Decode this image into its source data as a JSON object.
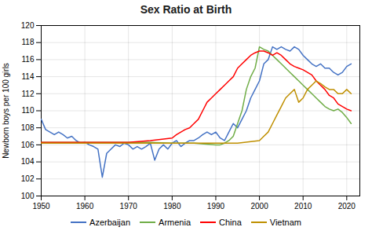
{
  "chart_data": {
    "type": "line",
    "title": "Sex Ratio at Birth",
    "ylabel": "Newborn boys per 100 girls",
    "xlim": [
      1950,
      2023
    ],
    "ylim": [
      100,
      120
    ],
    "xticks": [
      1950,
      1960,
      1970,
      1980,
      1990,
      2000,
      2010,
      2020
    ],
    "yticks": [
      100,
      102,
      104,
      106,
      108,
      110,
      112,
      114,
      116,
      118,
      120
    ],
    "grid": true,
    "legend": "bottom",
    "series": [
      {
        "name": "Azerbaijan",
        "color": "#4472c4",
        "x": [
          1950,
          1951,
          1952,
          1953,
          1954,
          1955,
          1956,
          1957,
          1958,
          1959,
          1960,
          1961,
          1962,
          1963,
          1964,
          1965,
          1966,
          1967,
          1968,
          1969,
          1970,
          1971,
          1972,
          1973,
          1974,
          1975,
          1976,
          1977,
          1978,
          1979,
          1980,
          1981,
          1982,
          1983,
          1984,
          1985,
          1986,
          1987,
          1988,
          1989,
          1990,
          1991,
          1992,
          1993,
          1994,
          1995,
          1996,
          1997,
          1998,
          1999,
          2000,
          2001,
          2002,
          2003,
          2004,
          2005,
          2006,
          2007,
          2008,
          2009,
          2010,
          2011,
          2012,
          2013,
          2014,
          2015,
          2016,
          2017,
          2018,
          2019,
          2020,
          2021
        ],
        "values": [
          109.0,
          107.8,
          107.5,
          107.2,
          107.5,
          107.2,
          106.8,
          107.0,
          106.5,
          106.2,
          106.3,
          106.0,
          105.8,
          105.5,
          102.2,
          105.0,
          105.5,
          106.0,
          105.8,
          106.2,
          106.0,
          105.5,
          105.8,
          105.5,
          105.8,
          106.2,
          104.2,
          105.5,
          106.0,
          105.5,
          106.2,
          106.5,
          105.8,
          106.2,
          106.5,
          106.5,
          106.8,
          107.2,
          107.5,
          107.2,
          107.5,
          106.8,
          106.5,
          107.5,
          108.5,
          108.0,
          109.0,
          110.0,
          111.5,
          112.5,
          113.5,
          115.5,
          116.0,
          117.5,
          117.2,
          117.5,
          117.2,
          117.0,
          117.5,
          117.2,
          116.5,
          116.0,
          115.5,
          115.2,
          115.5,
          115.0,
          115.0,
          114.5,
          114.2,
          114.5,
          115.2,
          115.5
        ]
      },
      {
        "name": "Armenia",
        "color": "#70ad47",
        "x": [
          1950,
          1955,
          1960,
          1965,
          1970,
          1975,
          1980,
          1985,
          1990,
          1991,
          1992,
          1993,
          1994,
          1995,
          1996,
          1997,
          1998,
          1999,
          2000,
          2001,
          2002,
          2003,
          2004,
          2005,
          2006,
          2007,
          2008,
          2009,
          2010,
          2011,
          2012,
          2013,
          2014,
          2015,
          2016,
          2017,
          2018,
          2019,
          2020,
          2021
        ],
        "values": [
          106.3,
          106.3,
          106.3,
          106.3,
          106.3,
          106.3,
          106.2,
          106.2,
          106.0,
          106.0,
          106.2,
          106.5,
          107.0,
          108.5,
          110.0,
          112.5,
          114.0,
          115.0,
          117.5,
          117.2,
          117.0,
          116.5,
          116.0,
          115.5,
          115.0,
          114.5,
          114.0,
          113.5,
          113.0,
          112.5,
          112.0,
          111.5,
          111.0,
          110.5,
          110.2,
          110.0,
          110.2,
          109.8,
          109.2,
          108.5
        ]
      },
      {
        "name": "China",
        "color": "#ff0000",
        "x": [
          1950,
          1955,
          1960,
          1965,
          1970,
          1975,
          1980,
          1981,
          1982,
          1983,
          1984,
          1985,
          1986,
          1987,
          1988,
          1989,
          1990,
          1991,
          1992,
          1993,
          1994,
          1995,
          1996,
          1997,
          1998,
          1999,
          2000,
          2001,
          2002,
          2003,
          2004,
          2005,
          2006,
          2007,
          2008,
          2009,
          2010,
          2011,
          2012,
          2013,
          2014,
          2015,
          2016,
          2017,
          2018,
          2019,
          2020,
          2021
        ],
        "values": [
          106.3,
          106.3,
          106.3,
          106.3,
          106.3,
          106.5,
          106.8,
          107.2,
          107.5,
          107.8,
          108.0,
          108.5,
          109.0,
          110.0,
          111.0,
          111.5,
          112.0,
          112.5,
          113.0,
          113.5,
          114.0,
          115.0,
          115.5,
          116.0,
          116.5,
          116.8,
          117.0,
          117.0,
          116.8,
          116.5,
          116.8,
          116.5,
          116.0,
          115.5,
          115.2,
          115.0,
          114.8,
          114.5,
          114.2,
          113.5,
          113.0,
          112.5,
          111.8,
          111.5,
          110.8,
          110.5,
          110.2,
          110.0
        ]
      },
      {
        "name": "Vietnam",
        "color": "#bf8f00",
        "x": [
          1950,
          1955,
          1960,
          1965,
          1970,
          1975,
          1980,
          1985,
          1990,
          1995,
          2000,
          2001,
          2002,
          2003,
          2004,
          2005,
          2006,
          2007,
          2008,
          2009,
          2010,
          2011,
          2012,
          2013,
          2014,
          2015,
          2016,
          2017,
          2018,
          2019,
          2020,
          2021
        ],
        "values": [
          106.2,
          106.2,
          106.2,
          106.2,
          106.2,
          106.2,
          106.2,
          106.2,
          106.2,
          106.2,
          106.5,
          107.0,
          107.5,
          108.5,
          109.5,
          110.5,
          111.5,
          112.0,
          112.5,
          111.0,
          111.5,
          112.5,
          113.0,
          113.5,
          113.2,
          112.8,
          112.5,
          112.5,
          112.0,
          112.0,
          112.5,
          112.0
        ]
      }
    ]
  }
}
